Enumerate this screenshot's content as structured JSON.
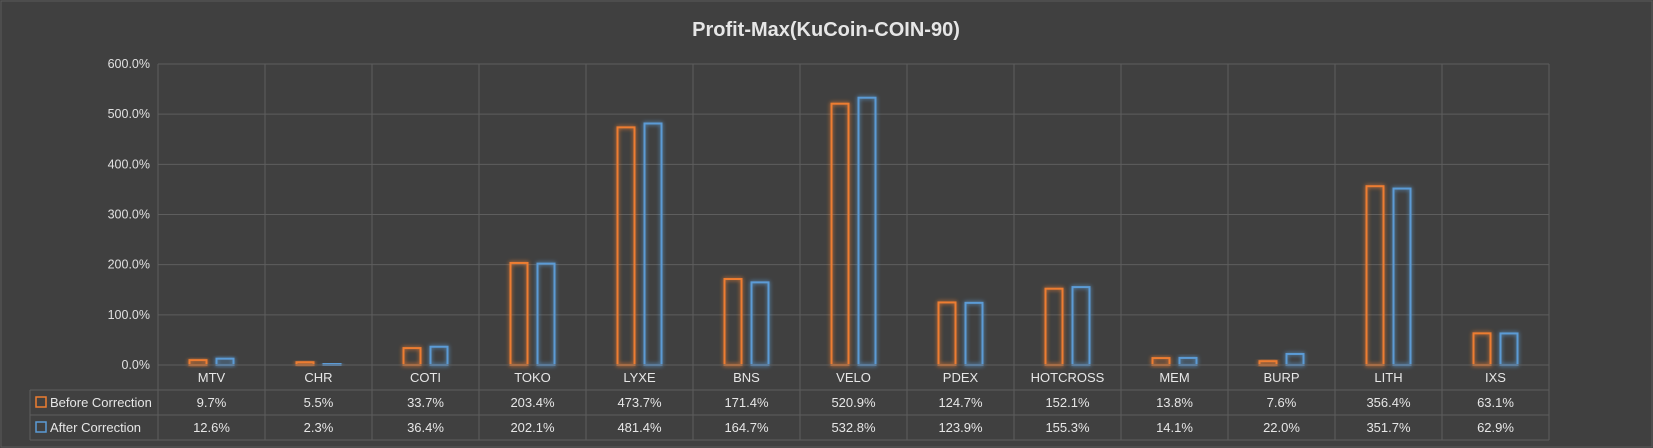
{
  "chart_data": {
    "type": "bar",
    "title": "Profit-Max(KuCoin-COIN-90)",
    "categories": [
      "MTV",
      "CHR",
      "COTI",
      "TOKO",
      "LYXE",
      "BNS",
      "VELO",
      "PDEX",
      "HOTCROSS",
      "MEM",
      "BURP",
      "LITH",
      "IXS"
    ],
    "series": [
      {
        "name": "Before Correction",
        "color": "#ed7d31",
        "values": [
          9.7,
          5.5,
          33.7,
          203.4,
          473.7,
          171.4,
          520.9,
          124.7,
          152.1,
          13.8,
          7.6,
          356.4,
          63.1
        ],
        "labels": [
          "9.7%",
          "5.5%",
          "33.7%",
          "203.4%",
          "473.7%",
          "171.4%",
          "520.9%",
          "124.7%",
          "152.1%",
          "13.8%",
          "7.6%",
          "356.4%",
          "63.1%"
        ]
      },
      {
        "name": "After Correction",
        "color": "#5b9bd5",
        "values": [
          12.6,
          2.3,
          36.4,
          202.1,
          481.4,
          164.7,
          532.8,
          123.9,
          155.3,
          14.1,
          22.0,
          351.7,
          62.9
        ],
        "labels": [
          "12.6%",
          "2.3%",
          "36.4%",
          "202.1%",
          "481.4%",
          "164.7%",
          "532.8%",
          "123.9%",
          "155.3%",
          "14.1%",
          "22.0%",
          "351.7%",
          "62.9%"
        ]
      }
    ],
    "ylim": [
      0,
      600
    ],
    "yticks": [
      "0.0%",
      "100.0%",
      "200.0%",
      "300.0%",
      "400.0%",
      "500.0%",
      "600.0%"
    ],
    "grid": true,
    "legend": "data-table"
  },
  "colors": {
    "background": "#404040",
    "grid": "#5e5e5e",
    "text": "#e6e6e6"
  }
}
